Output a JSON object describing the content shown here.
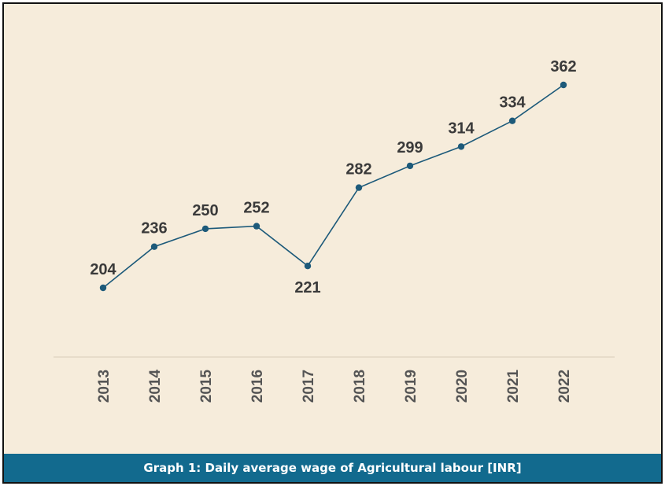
{
  "caption": "Graph 1: Daily average wage of Agricultural labour [INR]",
  "colors": {
    "background": "#f6ecdb",
    "line": "#1d5a7a",
    "marker": "#1d5a7a",
    "caption_bar": "#126a8e",
    "axis": "#d8cdb9"
  },
  "chart_data": {
    "type": "line",
    "title": "Graph 1: Daily average wage of Agricultural labour [INR]",
    "xlabel": "",
    "ylabel": "",
    "categories": [
      "2013",
      "2014",
      "2015",
      "2016",
      "2017",
      "2018",
      "2019",
      "2020",
      "2021",
      "2022"
    ],
    "series": [
      {
        "name": "Daily average wage (INR)",
        "values": [
          204,
          236,
          250,
          252,
          221,
          282,
          299,
          314,
          334,
          362
        ],
        "data_labels": [
          "204",
          "236",
          "250",
          "252",
          "221",
          "282",
          "299",
          "314",
          "334",
          "362"
        ]
      }
    ],
    "label_position": [
      "above",
      "above",
      "above",
      "above",
      "below",
      "above",
      "above",
      "above",
      "above",
      "above"
    ],
    "grid": false,
    "legend": "none"
  }
}
